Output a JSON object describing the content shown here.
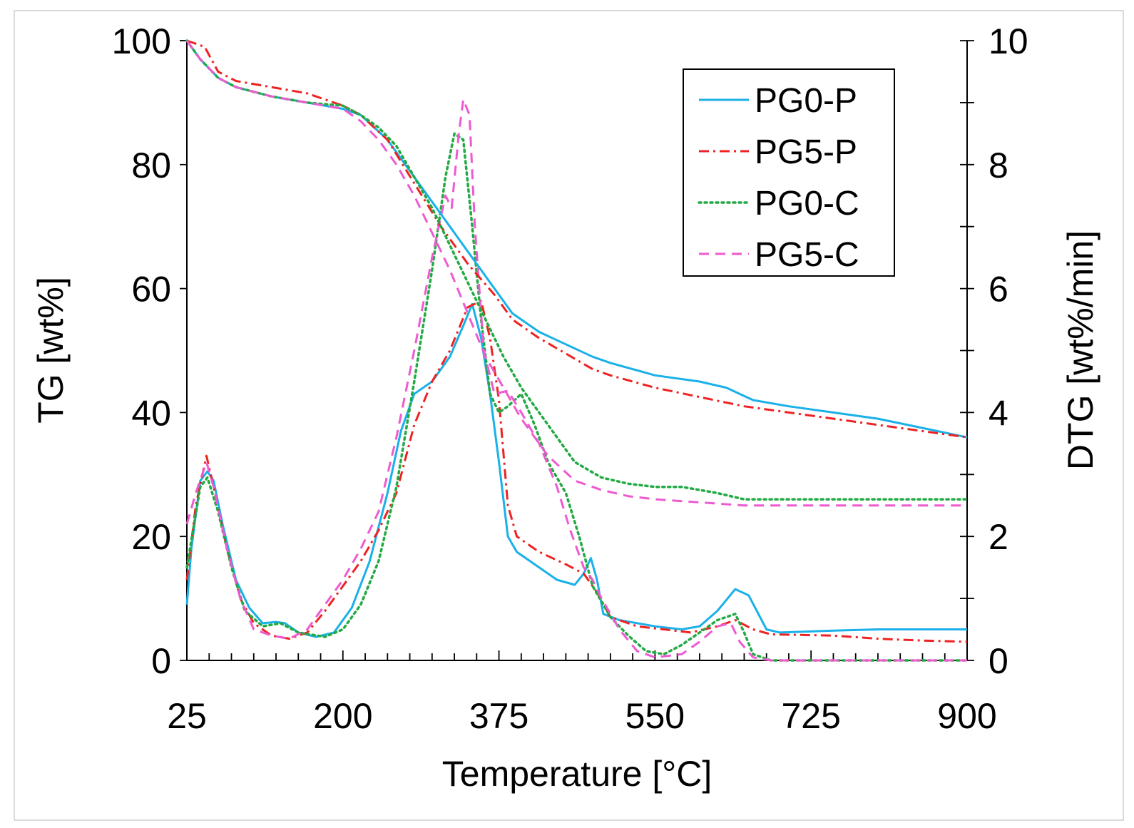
{
  "chart_data": {
    "type": "line",
    "xlabel": "Temperature [°C]",
    "ylabel_left": "TG [wt%]",
    "ylabel_right": "DTG [wt%/min]",
    "xlim": [
      25,
      900
    ],
    "ylim_left": [
      0,
      100
    ],
    "ylim_right": [
      0,
      10
    ],
    "x_ticks": [
      "25",
      "200",
      "375",
      "550",
      "725",
      "900"
    ],
    "y_left_ticks": [
      "0",
      "20",
      "40",
      "60",
      "80",
      "100"
    ],
    "y_right_ticks": [
      "0",
      "2",
      "4",
      "6",
      "8",
      "10"
    ],
    "legend": {
      "position": "top-right",
      "entries": [
        "PG0-P",
        "PG5-P",
        "PG0-C",
        "PG5-C"
      ]
    },
    "series": [
      {
        "name": "PG0-P",
        "kind": "TG",
        "axis": "left",
        "color": "#1ab0e8",
        "dash": "solid",
        "points": [
          [
            25,
            100
          ],
          [
            40,
            97
          ],
          [
            60,
            94
          ],
          [
            80,
            92.5
          ],
          [
            120,
            91
          ],
          [
            160,
            90
          ],
          [
            200,
            89
          ],
          [
            220,
            88
          ],
          [
            250,
            84
          ],
          [
            280,
            78
          ],
          [
            310,
            72
          ],
          [
            340,
            66
          ],
          [
            370,
            60
          ],
          [
            390,
            56
          ],
          [
            420,
            53
          ],
          [
            450,
            51
          ],
          [
            480,
            49
          ],
          [
            500,
            48
          ],
          [
            550,
            46
          ],
          [
            600,
            45
          ],
          [
            630,
            44
          ],
          [
            660,
            42
          ],
          [
            700,
            41
          ],
          [
            750,
            40
          ],
          [
            800,
            39
          ],
          [
            850,
            37.5
          ],
          [
            900,
            36
          ]
        ]
      },
      {
        "name": "PG5-P",
        "kind": "TG",
        "axis": "left",
        "color": "#ee2222",
        "dash": "dashdot",
        "points": [
          [
            25,
            100
          ],
          [
            45,
            99
          ],
          [
            60,
            95
          ],
          [
            80,
            93.5
          ],
          [
            120,
            92.5
          ],
          [
            160,
            91.5
          ],
          [
            200,
            89.5
          ],
          [
            220,
            88
          ],
          [
            250,
            84
          ],
          [
            280,
            77
          ],
          [
            310,
            70
          ],
          [
            340,
            64
          ],
          [
            370,
            59
          ],
          [
            390,
            55
          ],
          [
            420,
            52
          ],
          [
            450,
            49.5
          ],
          [
            480,
            47
          ],
          [
            500,
            46
          ],
          [
            550,
            44
          ],
          [
            600,
            42.5
          ],
          [
            650,
            41
          ],
          [
            700,
            40
          ],
          [
            750,
            39
          ],
          [
            800,
            38
          ],
          [
            850,
            37
          ],
          [
            900,
            36
          ]
        ]
      },
      {
        "name": "PG0-C",
        "kind": "TG",
        "axis": "left",
        "color": "#22aa44",
        "dash": "dotted",
        "points": [
          [
            25,
            100
          ],
          [
            40,
            97
          ],
          [
            60,
            94
          ],
          [
            80,
            92.5
          ],
          [
            120,
            91
          ],
          [
            160,
            90
          ],
          [
            200,
            89.5
          ],
          [
            220,
            88
          ],
          [
            240,
            86
          ],
          [
            260,
            83
          ],
          [
            280,
            78
          ],
          [
            300,
            73
          ],
          [
            320,
            67
          ],
          [
            340,
            61
          ],
          [
            360,
            55
          ],
          [
            380,
            49
          ],
          [
            400,
            44
          ],
          [
            430,
            38
          ],
          [
            460,
            32
          ],
          [
            490,
            29.5
          ],
          [
            520,
            28.5
          ],
          [
            550,
            28
          ],
          [
            580,
            28
          ],
          [
            600,
            27.5
          ],
          [
            620,
            27
          ],
          [
            650,
            26
          ],
          [
            700,
            26
          ],
          [
            800,
            26
          ],
          [
            900,
            26
          ]
        ]
      },
      {
        "name": "PG5-C",
        "kind": "TG",
        "axis": "left",
        "color": "#ee5ad0",
        "dash": "dashed",
        "points": [
          [
            25,
            100
          ],
          [
            40,
            97
          ],
          [
            60,
            94
          ],
          [
            80,
            92.5
          ],
          [
            120,
            91
          ],
          [
            160,
            90
          ],
          [
            200,
            89
          ],
          [
            220,
            87
          ],
          [
            240,
            84
          ],
          [
            260,
            80
          ],
          [
            280,
            75
          ],
          [
            300,
            69
          ],
          [
            320,
            63
          ],
          [
            340,
            56
          ],
          [
            360,
            49
          ],
          [
            380,
            44
          ],
          [
            400,
            39
          ],
          [
            430,
            33
          ],
          [
            460,
            29
          ],
          [
            490,
            27.5
          ],
          [
            520,
            26.5
          ],
          [
            550,
            26
          ],
          [
            600,
            25.5
          ],
          [
            650,
            25
          ],
          [
            700,
            25
          ],
          [
            800,
            25
          ],
          [
            900,
            25
          ]
        ]
      },
      {
        "name": "PG0-P",
        "kind": "DTG",
        "axis": "right",
        "color": "#1ab0e8",
        "dash": "solid",
        "points": [
          [
            25,
            0.9
          ],
          [
            30,
            1.8
          ],
          [
            40,
            2.9
          ],
          [
            48,
            3.05
          ],
          [
            55,
            2.9
          ],
          [
            65,
            2.2
          ],
          [
            80,
            1.3
          ],
          [
            95,
            0.85
          ],
          [
            110,
            0.6
          ],
          [
            125,
            0.62
          ],
          [
            135,
            0.6
          ],
          [
            150,
            0.45
          ],
          [
            170,
            0.38
          ],
          [
            190,
            0.45
          ],
          [
            210,
            0.85
          ],
          [
            230,
            1.6
          ],
          [
            250,
            2.7
          ],
          [
            265,
            3.7
          ],
          [
            280,
            4.3
          ],
          [
            300,
            4.5
          ],
          [
            320,
            4.9
          ],
          [
            335,
            5.4
          ],
          [
            345,
            5.75
          ],
          [
            355,
            5.2
          ],
          [
            365,
            4.3
          ],
          [
            375,
            3.2
          ],
          [
            385,
            2.0
          ],
          [
            395,
            1.75
          ],
          [
            420,
            1.5
          ],
          [
            440,
            1.3
          ],
          [
            460,
            1.22
          ],
          [
            470,
            1.4
          ],
          [
            478,
            1.65
          ],
          [
            485,
            1.3
          ],
          [
            492,
            0.75
          ],
          [
            510,
            0.65
          ],
          [
            550,
            0.55
          ],
          [
            580,
            0.5
          ],
          [
            600,
            0.55
          ],
          [
            620,
            0.8
          ],
          [
            640,
            1.15
          ],
          [
            655,
            1.05
          ],
          [
            675,
            0.5
          ],
          [
            690,
            0.45
          ],
          [
            750,
            0.48
          ],
          [
            800,
            0.5
          ],
          [
            900,
            0.5
          ]
        ]
      },
      {
        "name": "PG5-P",
        "kind": "DTG",
        "axis": "right",
        "color": "#ee2222",
        "dash": "dashdot",
        "points": [
          [
            25,
            1.3
          ],
          [
            35,
            2.5
          ],
          [
            47,
            3.3
          ],
          [
            55,
            2.8
          ],
          [
            70,
            1.8
          ],
          [
            85,
            1.0
          ],
          [
            100,
            0.6
          ],
          [
            120,
            0.4
          ],
          [
            140,
            0.35
          ],
          [
            160,
            0.45
          ],
          [
            180,
            0.8
          ],
          [
            200,
            1.2
          ],
          [
            220,
            1.6
          ],
          [
            240,
            2.1
          ],
          [
            260,
            2.7
          ],
          [
            280,
            3.8
          ],
          [
            300,
            4.5
          ],
          [
            320,
            5.0
          ],
          [
            340,
            5.7
          ],
          [
            355,
            5.8
          ],
          [
            365,
            5.2
          ],
          [
            375,
            4.2
          ],
          [
            385,
            2.5
          ],
          [
            395,
            2.0
          ],
          [
            420,
            1.75
          ],
          [
            450,
            1.55
          ],
          [
            470,
            1.4
          ],
          [
            485,
            1.1
          ],
          [
            500,
            0.7
          ],
          [
            530,
            0.55
          ],
          [
            560,
            0.5
          ],
          [
            590,
            0.45
          ],
          [
            620,
            0.55
          ],
          [
            640,
            0.65
          ],
          [
            660,
            0.5
          ],
          [
            680,
            0.42
          ],
          [
            750,
            0.4
          ],
          [
            800,
            0.35
          ],
          [
            850,
            0.32
          ],
          [
            900,
            0.3
          ]
        ]
      },
      {
        "name": "PG0-C",
        "kind": "DTG",
        "axis": "right",
        "color": "#22aa44",
        "dash": "dotted",
        "points": [
          [
            25,
            1.5
          ],
          [
            40,
            2.8
          ],
          [
            48,
            2.95
          ],
          [
            60,
            2.4
          ],
          [
            75,
            1.5
          ],
          [
            90,
            0.8
          ],
          [
            110,
            0.55
          ],
          [
            130,
            0.6
          ],
          [
            150,
            0.45
          ],
          [
            180,
            0.38
          ],
          [
            200,
            0.5
          ],
          [
            220,
            0.9
          ],
          [
            240,
            1.6
          ],
          [
            260,
            2.8
          ],
          [
            280,
            4.5
          ],
          [
            300,
            6.3
          ],
          [
            315,
            7.8
          ],
          [
            325,
            8.5
          ],
          [
            335,
            8.4
          ],
          [
            345,
            7.0
          ],
          [
            355,
            5.5
          ],
          [
            365,
            4.3
          ],
          [
            375,
            4.0
          ],
          [
            385,
            4.1
          ],
          [
            400,
            4.3
          ],
          [
            415,
            3.8
          ],
          [
            430,
            3.2
          ],
          [
            450,
            2.7
          ],
          [
            465,
            2.0
          ],
          [
            480,
            1.2
          ],
          [
            500,
            0.7
          ],
          [
            520,
            0.4
          ],
          [
            540,
            0.15
          ],
          [
            560,
            0.1
          ],
          [
            580,
            0.25
          ],
          [
            600,
            0.45
          ],
          [
            620,
            0.65
          ],
          [
            640,
            0.75
          ],
          [
            650,
            0.45
          ],
          [
            660,
            0.1
          ],
          [
            680,
            0.0
          ],
          [
            900,
            0.0
          ]
        ]
      },
      {
        "name": "PG5-C",
        "kind": "DTG",
        "axis": "right",
        "color": "#ee5ad0",
        "dash": "dashed",
        "points": [
          [
            25,
            2.2
          ],
          [
            35,
            2.7
          ],
          [
            47,
            3.2
          ],
          [
            55,
            2.8
          ],
          [
            70,
            1.8
          ],
          [
            85,
            1.0
          ],
          [
            100,
            0.5
          ],
          [
            120,
            0.4
          ],
          [
            140,
            0.35
          ],
          [
            160,
            0.5
          ],
          [
            180,
            0.9
          ],
          [
            200,
            1.3
          ],
          [
            220,
            1.8
          ],
          [
            240,
            2.4
          ],
          [
            260,
            3.6
          ],
          [
            280,
            5.0
          ],
          [
            300,
            6.5
          ],
          [
            315,
            7.5
          ],
          [
            322,
            7.3
          ],
          [
            330,
            8.5
          ],
          [
            335,
            9.05
          ],
          [
            342,
            8.8
          ],
          [
            348,
            7.0
          ],
          [
            358,
            5.0
          ],
          [
            370,
            4.3
          ],
          [
            385,
            4.35
          ],
          [
            400,
            4.0
          ],
          [
            420,
            3.5
          ],
          [
            440,
            2.8
          ],
          [
            455,
            2.1
          ],
          [
            470,
            1.5
          ],
          [
            480,
            1.3
          ],
          [
            490,
            1.0
          ],
          [
            510,
            0.5
          ],
          [
            530,
            0.15
          ],
          [
            550,
            0.05
          ],
          [
            580,
            0.1
          ],
          [
            600,
            0.3
          ],
          [
            620,
            0.55
          ],
          [
            635,
            0.6
          ],
          [
            645,
            0.3
          ],
          [
            660,
            0.05
          ],
          [
            680,
            0.0
          ],
          [
            900,
            0.0
          ]
        ]
      }
    ]
  }
}
